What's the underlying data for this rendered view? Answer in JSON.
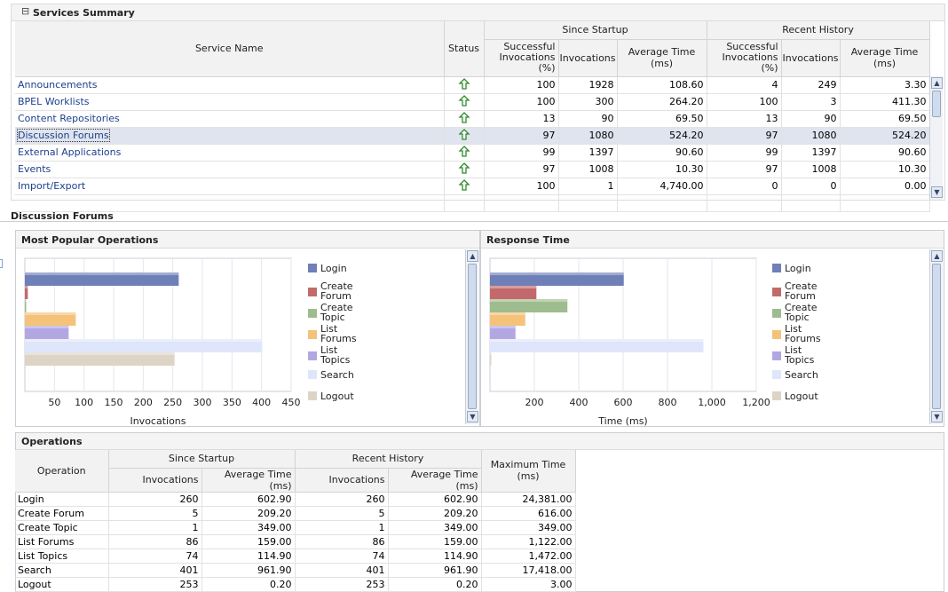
{
  "services_panel": {
    "title": "Services Summary",
    "collapse_symbol": "⊟",
    "headers": {
      "service_name": "Service Name",
      "status": "Status",
      "since_startup": "Since Startup",
      "recent_history": "Recent History",
      "successful": "Successful Invocations (%)",
      "invocations": "Invocations",
      "avg_time": "Average Time (ms)"
    },
    "rows": [
      {
        "name": "Announcements",
        "ss_pct": "100",
        "ss_inv": "1928",
        "ss_avg": "108.60",
        "rh_pct": "4",
        "rh_inv": "249",
        "rh_avg": "3.30"
      },
      {
        "name": "BPEL Worklists",
        "ss_pct": "100",
        "ss_inv": "300",
        "ss_avg": "264.20",
        "rh_pct": "100",
        "rh_inv": "3",
        "rh_avg": "411.30"
      },
      {
        "name": "Content Repositories",
        "ss_pct": "13",
        "ss_inv": "90",
        "ss_avg": "69.50",
        "rh_pct": "13",
        "rh_inv": "90",
        "rh_avg": "69.50"
      },
      {
        "name": "Discussion Forums",
        "ss_pct": "97",
        "ss_inv": "1080",
        "ss_avg": "524.20",
        "rh_pct": "97",
        "rh_inv": "1080",
        "rh_avg": "524.20"
      },
      {
        "name": "External Applications",
        "ss_pct": "99",
        "ss_inv": "1397",
        "ss_avg": "90.60",
        "rh_pct": "99",
        "rh_inv": "1397",
        "rh_avg": "90.60"
      },
      {
        "name": "Events",
        "ss_pct": "97",
        "ss_inv": "1008",
        "ss_avg": "10.30",
        "rh_pct": "97",
        "rh_inv": "1008",
        "rh_avg": "10.30"
      },
      {
        "name": "Import/Export",
        "ss_pct": "100",
        "ss_inv": "1",
        "ss_avg": "4,740.00",
        "rh_pct": "0",
        "rh_inv": "0",
        "rh_avg": "0.00"
      }
    ],
    "selected_row": "Discussion Forums",
    "status_icon": "up-arrow-icon"
  },
  "detail_title": "Discussion Forums",
  "popular_panel": {
    "title": "Most Popular Operations"
  },
  "response_panel": {
    "title": "Response Time"
  },
  "colors": {
    "Login": "#6f7fb8",
    "Create Forum": "#c4696b",
    "Create Topic": "#9fbc8e",
    "List Forums": "#f5c27a",
    "List Topics": "#b3a7e3",
    "Search": "#dfe6fb",
    "Logout": "#ddd4c6"
  },
  "chart_data": [
    {
      "type": "bar",
      "orientation": "horizontal",
      "categories": [
        "Login",
        "Create Forum",
        "Create Topic",
        "List Forums",
        "List Topics",
        "Search",
        "Logout"
      ],
      "legend_labels": [
        "Login",
        "Create Forum",
        "Create Topic",
        "List Forums",
        "List Topics",
        "Search",
        "Logout"
      ],
      "values": [
        260,
        5,
        1,
        86,
        74,
        401,
        253
      ],
      "xlabel": "Invocations",
      "ticks": [
        "50",
        "100",
        "150",
        "200",
        "250",
        "300",
        "350",
        "400",
        "450"
      ],
      "xlim": [
        0,
        450
      ],
      "grid": true,
      "legend": "right"
    },
    {
      "type": "bar",
      "orientation": "horizontal",
      "categories": [
        "Login",
        "Create Forum",
        "Create Topic",
        "List Forums",
        "List Topics",
        "Search",
        "Logout"
      ],
      "legend_labels": [
        "Login",
        "Create Forum",
        "Create Topic",
        "List Forums",
        "List Topics",
        "Search",
        "Logout"
      ],
      "values": [
        602.9,
        209.2,
        349.0,
        159.0,
        114.9,
        961.9,
        0.2
      ],
      "xlabel": "Time (ms)",
      "ticks": [
        "200",
        "400",
        "600",
        "800",
        "1,000",
        "1,200"
      ],
      "xlim": [
        0,
        1200
      ],
      "grid": true,
      "legend": "right"
    }
  ],
  "operations_panel": {
    "title": "Operations",
    "headers": {
      "operation": "Operation",
      "since_startup": "Since Startup",
      "recent_history": "Recent History",
      "invocations": "Invocations",
      "avg_time": "Average Time (ms)",
      "max_time": "Maximum Time (ms)"
    },
    "rows": [
      {
        "op": "Login",
        "ss_inv": "260",
        "ss_avg": "602.90",
        "rh_inv": "260",
        "rh_avg": "602.90",
        "max": "24,381.00"
      },
      {
        "op": "Create Forum",
        "ss_inv": "5",
        "ss_avg": "209.20",
        "rh_inv": "5",
        "rh_avg": "209.20",
        "max": "616.00"
      },
      {
        "op": "Create Topic",
        "ss_inv": "1",
        "ss_avg": "349.00",
        "rh_inv": "1",
        "rh_avg": "349.00",
        "max": "349.00"
      },
      {
        "op": "List Forums",
        "ss_inv": "86",
        "ss_avg": "159.00",
        "rh_inv": "86",
        "rh_avg": "159.00",
        "max": "1,122.00"
      },
      {
        "op": "List Topics",
        "ss_inv": "74",
        "ss_avg": "114.90",
        "rh_inv": "74",
        "rh_avg": "114.90",
        "max": "1,472.00"
      },
      {
        "op": "Search",
        "ss_inv": "401",
        "ss_avg": "961.90",
        "rh_inv": "401",
        "rh_avg": "961.90",
        "max": "17,418.00"
      },
      {
        "op": "Logout",
        "ss_inv": "253",
        "ss_avg": "0.20",
        "rh_inv": "253",
        "rh_avg": "0.20",
        "max": "3.00"
      }
    ]
  }
}
